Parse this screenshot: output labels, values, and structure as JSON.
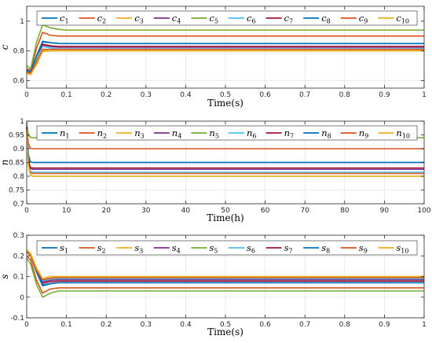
{
  "chart_data": [
    {
      "type": "line",
      "xlabel": "Time(s)",
      "ylabel": "c",
      "xlim": [
        0,
        1
      ],
      "ylim": [
        0.55,
        1.1
      ],
      "xticks": [
        0,
        0.1,
        0.2,
        0.3,
        0.4,
        0.5,
        0.6,
        0.7,
        0.8,
        0.9,
        1
      ],
      "xtick_labels": [
        "0",
        "0.1",
        "0.2",
        "0.3",
        "0.4",
        "0.5",
        "0.6",
        "0.7",
        "0.8",
        "0.9",
        "1"
      ],
      "yticks": [
        0.6,
        0.8,
        1
      ],
      "ytick_labels": [
        "0.6",
        "0.8",
        "1"
      ],
      "grid": true,
      "legend": "top, horizontal",
      "series": [
        {
          "name": "c1",
          "base": "c",
          "sub": "1",
          "color": "#0072BD",
          "x": [
            0,
            0.01,
            0.025,
            0.04,
            0.06,
            0.08,
            0.1,
            0.15,
            1
          ],
          "y": [
            0.67,
            0.66,
            0.76,
            0.86,
            0.855,
            0.85,
            0.85,
            0.85,
            0.85
          ]
        },
        {
          "name": "c2",
          "base": "c",
          "sub": "2",
          "color": "#D95319",
          "x": [
            0,
            0.01,
            0.025,
            0.04,
            0.06,
            0.08,
            0.1,
            0.15,
            1
          ],
          "y": [
            0.68,
            0.67,
            0.82,
            0.925,
            0.905,
            0.9,
            0.9,
            0.9,
            0.9
          ]
        },
        {
          "name": "c3",
          "base": "c",
          "sub": "3",
          "color": "#EDB120",
          "x": [
            0,
            0.01,
            0.025,
            0.04,
            0.06,
            0.08,
            0.1,
            0.15,
            1
          ],
          "y": [
            0.66,
            0.64,
            0.72,
            0.8,
            0.8,
            0.8,
            0.8,
            0.8,
            0.8
          ]
        },
        {
          "name": "c4",
          "base": "c",
          "sub": "4",
          "color": "#7E2F8E",
          "x": [
            0,
            0.01,
            0.025,
            0.04,
            0.06,
            0.08,
            0.1,
            0.15,
            1
          ],
          "y": [
            0.67,
            0.66,
            0.76,
            0.84,
            0.83,
            0.825,
            0.825,
            0.825,
            0.825
          ]
        },
        {
          "name": "c5",
          "base": "c",
          "sub": "5",
          "color": "#77AC30",
          "x": [
            0,
            0.01,
            0.025,
            0.04,
            0.06,
            0.08,
            0.1,
            0.15,
            1
          ],
          "y": [
            0.7,
            0.68,
            0.86,
            0.975,
            0.955,
            0.945,
            0.94,
            0.94,
            0.94
          ]
        },
        {
          "name": "c6",
          "base": "c",
          "sub": "6",
          "color": "#4DBEEE",
          "x": [
            0,
            0.01,
            0.025,
            0.04,
            0.06,
            0.08,
            0.1,
            0.15,
            1
          ],
          "y": [
            0.67,
            0.66,
            0.75,
            0.83,
            0.82,
            0.815,
            0.815,
            0.815,
            0.815
          ]
        },
        {
          "name": "c7",
          "base": "c",
          "sub": "7",
          "color": "#A2142F",
          "x": [
            0,
            0.01,
            0.025,
            0.04,
            0.06,
            0.08,
            0.1,
            0.15,
            1
          ],
          "y": [
            0.67,
            0.66,
            0.77,
            0.845,
            0.835,
            0.83,
            0.83,
            0.83,
            0.83
          ]
        },
        {
          "name": "c8",
          "base": "c",
          "sub": "8",
          "color": "#0072BD",
          "x": [
            0,
            0.01,
            0.025,
            0.04,
            0.06,
            0.08,
            0.1,
            0.15,
            1
          ],
          "y": [
            0.67,
            0.66,
            0.77,
            0.865,
            0.855,
            0.85,
            0.85,
            0.85,
            0.85
          ]
        },
        {
          "name": "c9",
          "base": "c",
          "sub": "9",
          "color": "#D95319",
          "x": [
            0,
            0.01,
            0.025,
            0.04,
            0.06,
            0.08,
            0.1,
            0.15,
            1
          ],
          "y": [
            0.66,
            0.65,
            0.73,
            0.81,
            0.81,
            0.81,
            0.81,
            0.81,
            0.81
          ]
        },
        {
          "name": "c10",
          "base": "c",
          "sub": "10",
          "color": "#EDB120",
          "x": [
            0,
            0.01,
            0.025,
            0.04,
            0.06,
            0.08,
            0.1,
            0.15,
            1
          ],
          "y": [
            0.65,
            0.64,
            0.71,
            0.795,
            0.8,
            0.8,
            0.8,
            0.8,
            0.8
          ]
        }
      ]
    },
    {
      "type": "line",
      "xlabel": "Time(h)",
      "ylabel": "n",
      "xlim": [
        0,
        100
      ],
      "ylim": [
        0.7,
        1
      ],
      "xticks": [
        0,
        10,
        20,
        30,
        40,
        50,
        60,
        70,
        80,
        90,
        100
      ],
      "xtick_labels": [
        "0",
        "10",
        "20",
        "30",
        "40",
        "50",
        "60",
        "70",
        "80",
        "90",
        "100"
      ],
      "yticks": [
        0.7,
        0.75,
        0.8,
        0.85,
        0.9,
        0.95,
        1
      ],
      "ytick_labels": [
        "0.7",
        "0.75",
        "0.8",
        "0.85",
        "0.9",
        "0.95",
        "1"
      ],
      "grid": true,
      "legend": "top, horizontal",
      "series": [
        {
          "name": "n1",
          "base": "n",
          "sub": "1",
          "color": "#0072BD",
          "x": [
            0,
            0.4,
            0.9,
            1.5,
            100
          ],
          "y": [
            0.98,
            0.88,
            0.852,
            0.85,
            0.85
          ]
        },
        {
          "name": "n2",
          "base": "n",
          "sub": "2",
          "color": "#D95319",
          "x": [
            0,
            0.4,
            0.9,
            1.5,
            100
          ],
          "y": [
            0.985,
            0.92,
            0.902,
            0.9,
            0.9
          ]
        },
        {
          "name": "n3",
          "base": "n",
          "sub": "3",
          "color": "#EDB120",
          "x": [
            0,
            0.4,
            0.9,
            1.5,
            100
          ],
          "y": [
            0.97,
            0.84,
            0.806,
            0.8,
            0.8
          ]
        },
        {
          "name": "n4",
          "base": "n",
          "sub": "4",
          "color": "#7E2F8E",
          "x": [
            0,
            0.4,
            0.9,
            1.5,
            100
          ],
          "y": [
            0.975,
            0.86,
            0.828,
            0.825,
            0.825
          ]
        },
        {
          "name": "n5",
          "base": "n",
          "sub": "5",
          "color": "#77AC30",
          "x": [
            0,
            0.4,
            0.9,
            1.5,
            100
          ],
          "y": [
            0.995,
            0.95,
            0.942,
            0.94,
            0.94
          ]
        },
        {
          "name": "n6",
          "base": "n",
          "sub": "6",
          "color": "#4DBEEE",
          "x": [
            0,
            0.4,
            0.9,
            1.5,
            100
          ],
          "y": [
            0.975,
            0.85,
            0.818,
            0.815,
            0.815
          ]
        },
        {
          "name": "n7",
          "base": "n",
          "sub": "7",
          "color": "#A2142F",
          "x": [
            0,
            0.4,
            0.9,
            1.5,
            100
          ],
          "y": [
            0.978,
            0.862,
            0.832,
            0.83,
            0.83
          ]
        },
        {
          "name": "n8",
          "base": "n",
          "sub": "8",
          "color": "#0072BD",
          "x": [
            0,
            0.4,
            0.9,
            1.5,
            100
          ],
          "y": [
            0.98,
            0.88,
            0.852,
            0.85,
            0.85
          ]
        },
        {
          "name": "n9",
          "base": "n",
          "sub": "9",
          "color": "#D95319",
          "x": [
            0,
            0.4,
            0.9,
            1.5,
            100
          ],
          "y": [
            0.972,
            0.845,
            0.813,
            0.81,
            0.81
          ]
        },
        {
          "name": "n10",
          "base": "n",
          "sub": "10",
          "color": "#EDB120",
          "x": [
            0,
            0.4,
            0.9,
            1.5,
            100
          ],
          "y": [
            0.97,
            0.84,
            0.806,
            0.8,
            0.8
          ]
        }
      ]
    },
    {
      "type": "line",
      "xlabel": "Time(s)",
      "ylabel": "s",
      "xlim": [
        0,
        1
      ],
      "ylim": [
        -0.1,
        0.3
      ],
      "xticks": [
        0,
        0.1,
        0.2,
        0.3,
        0.4,
        0.5,
        0.6,
        0.7,
        0.8,
        0.9,
        1
      ],
      "xtick_labels": [
        "0",
        "0.1",
        "0.2",
        "0.3",
        "0.4",
        "0.5",
        "0.6",
        "0.7",
        "0.8",
        "0.9",
        "1"
      ],
      "yticks": [
        -0.1,
        0,
        0.1,
        0.2,
        0.3
      ],
      "ytick_labels": [
        "-0.1",
        "0",
        "0.1",
        "0.2",
        "0.3"
      ],
      "grid": true,
      "legend": "top, horizontal",
      "series": [
        {
          "name": "s1",
          "base": "s",
          "sub": "1",
          "color": "#0072BD",
          "x": [
            0,
            0.01,
            0.025,
            0.04,
            0.06,
            0.08,
            0.1,
            0.15,
            1
          ],
          "y": [
            0.22,
            0.2,
            0.12,
            0.055,
            0.065,
            0.07,
            0.07,
            0.07,
            0.07
          ]
        },
        {
          "name": "s2",
          "base": "s",
          "sub": "2",
          "color": "#D95319",
          "x": [
            0,
            0.01,
            0.025,
            0.04,
            0.06,
            0.08,
            0.1,
            0.15,
            1
          ],
          "y": [
            0.2,
            0.18,
            0.08,
            0.02,
            0.04,
            0.045,
            0.045,
            0.045,
            0.045
          ]
        },
        {
          "name": "s3",
          "base": "s",
          "sub": "3",
          "color": "#EDB120",
          "x": [
            0,
            0.01,
            0.025,
            0.04,
            0.06,
            0.08,
            0.1,
            0.15,
            1
          ],
          "y": [
            0.23,
            0.21,
            0.14,
            0.09,
            0.1,
            0.1,
            0.1,
            0.1,
            0.1
          ]
        },
        {
          "name": "s4",
          "base": "s",
          "sub": "4",
          "color": "#7E2F8E",
          "x": [
            0,
            0.01,
            0.025,
            0.04,
            0.06,
            0.08,
            0.1,
            0.15,
            1
          ],
          "y": [
            0.22,
            0.2,
            0.13,
            0.075,
            0.082,
            0.085,
            0.085,
            0.085,
            0.085
          ]
        },
        {
          "name": "s5",
          "base": "s",
          "sub": "5",
          "color": "#77AC30",
          "x": [
            0,
            0.01,
            0.025,
            0.04,
            0.06,
            0.08,
            0.1,
            0.15,
            1
          ],
          "y": [
            0.19,
            0.16,
            0.06,
            0.0,
            0.02,
            0.03,
            0.03,
            0.03,
            0.03
          ]
        },
        {
          "name": "s6",
          "base": "s",
          "sub": "6",
          "color": "#4DBEEE",
          "x": [
            0,
            0.01,
            0.025,
            0.04,
            0.06,
            0.08,
            0.1,
            0.15,
            1
          ],
          "y": [
            0.22,
            0.2,
            0.13,
            0.08,
            0.088,
            0.09,
            0.09,
            0.09,
            0.09
          ]
        },
        {
          "name": "s7",
          "base": "s",
          "sub": "7",
          "color": "#A2142F",
          "x": [
            0,
            0.01,
            0.025,
            0.04,
            0.06,
            0.08,
            0.1,
            0.15,
            1
          ],
          "y": [
            0.22,
            0.2,
            0.125,
            0.068,
            0.075,
            0.078,
            0.078,
            0.078,
            0.078
          ]
        },
        {
          "name": "s8",
          "base": "s",
          "sub": "8",
          "color": "#0072BD",
          "x": [
            0,
            0.01,
            0.025,
            0.04,
            0.06,
            0.08,
            0.1,
            0.15,
            1
          ],
          "y": [
            0.22,
            0.2,
            0.12,
            0.06,
            0.066,
            0.07,
            0.07,
            0.07,
            0.07
          ]
        },
        {
          "name": "s9",
          "base": "s",
          "sub": "9",
          "color": "#D95319",
          "x": [
            0,
            0.01,
            0.025,
            0.04,
            0.06,
            0.08,
            0.1,
            0.15,
            1
          ],
          "y": [
            0.22,
            0.2,
            0.13,
            0.085,
            0.092,
            0.095,
            0.095,
            0.095,
            0.095
          ]
        },
        {
          "name": "s10",
          "base": "s",
          "sub": "10",
          "color": "#EDB120",
          "x": [
            0,
            0.01,
            0.025,
            0.04,
            0.06,
            0.08,
            0.1,
            0.15,
            1
          ],
          "y": [
            0.23,
            0.21,
            0.14,
            0.09,
            0.1,
            0.1,
            0.1,
            0.1,
            0.1
          ]
        }
      ]
    }
  ]
}
